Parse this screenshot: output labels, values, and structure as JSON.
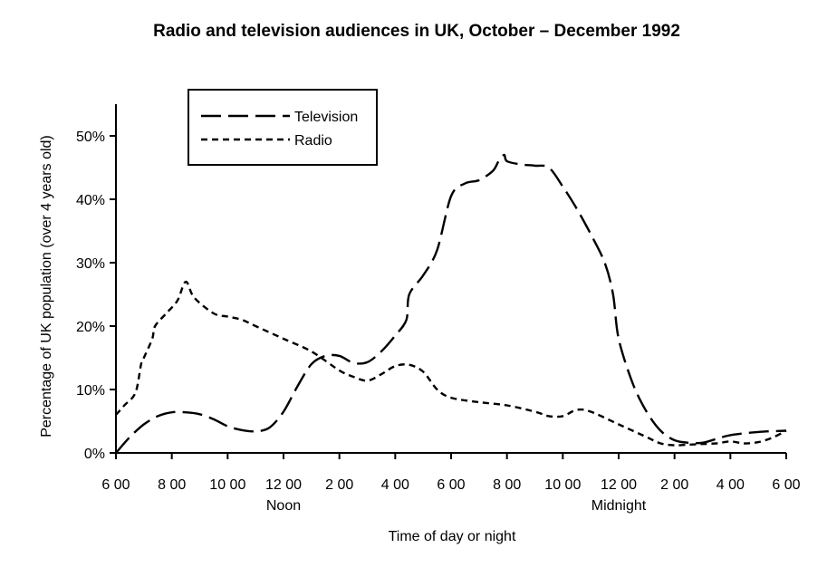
{
  "chart_data": {
    "type": "line",
    "title": "Radio and television audiences in UK, October – December 1992",
    "xlabel": "Time of day or night",
    "ylabel": "Percentage of UK population (over 4 years old)",
    "x_ticks": [
      {
        "hour": 6,
        "label": "6 00"
      },
      {
        "hour": 8,
        "label": "8 00"
      },
      {
        "hour": 10,
        "label": "10 00"
      },
      {
        "hour": 12,
        "label": "12 00",
        "sublabel": "Noon"
      },
      {
        "hour": 14,
        "label": "2 00"
      },
      {
        "hour": 16,
        "label": "4 00"
      },
      {
        "hour": 18,
        "label": "6 00"
      },
      {
        "hour": 20,
        "label": "8 00"
      },
      {
        "hour": 22,
        "label": "10 00"
      },
      {
        "hour": 24,
        "label": "12 00",
        "sublabel": "Midnight"
      },
      {
        "hour": 26,
        "label": "2 00"
      },
      {
        "hour": 28,
        "label": "4 00"
      },
      {
        "hour": 30,
        "label": "6 00"
      }
    ],
    "y_ticks": [
      {
        "value": 0,
        "label": "0%"
      },
      {
        "value": 10,
        "label": "10%"
      },
      {
        "value": 20,
        "label": "20%"
      },
      {
        "value": 30,
        "label": "30%"
      },
      {
        "value": 40,
        "label": "40%"
      },
      {
        "value": 50,
        "label": "50%"
      }
    ],
    "xlim": [
      6,
      30
    ],
    "ylim": [
      0,
      55
    ],
    "grid": false,
    "legend_position": "top-left",
    "series": [
      {
        "name": "Television",
        "style": "long-dash",
        "color": "#000000",
        "points": [
          [
            6.0,
            0
          ],
          [
            6.5,
            2.5
          ],
          [
            7.0,
            4.5
          ],
          [
            7.5,
            5.8
          ],
          [
            8.0,
            6.4
          ],
          [
            8.5,
            6.4
          ],
          [
            9.0,
            6.1
          ],
          [
            9.5,
            5.3
          ],
          [
            10.0,
            4.2
          ],
          [
            10.5,
            3.6
          ],
          [
            11.0,
            3.4
          ],
          [
            11.5,
            4.0
          ],
          [
            12.0,
            6.5
          ],
          [
            12.5,
            10.5
          ],
          [
            13.0,
            14.0
          ],
          [
            13.5,
            15.3
          ],
          [
            14.0,
            15.3
          ],
          [
            14.5,
            14.2
          ],
          [
            15.0,
            14.3
          ],
          [
            15.5,
            16.0
          ],
          [
            16.0,
            18.5
          ],
          [
            16.4,
            21.0
          ],
          [
            16.5,
            25.0
          ],
          [
            17.0,
            28.0
          ],
          [
            17.5,
            32.0
          ],
          [
            18.0,
            40.5
          ],
          [
            18.5,
            42.5
          ],
          [
            19.0,
            43.0
          ],
          [
            19.5,
            44.5
          ],
          [
            19.7,
            46.0
          ],
          [
            19.9,
            47.0
          ],
          [
            20.0,
            46.0
          ],
          [
            20.5,
            45.5
          ],
          [
            21.0,
            45.3
          ],
          [
            21.5,
            45.0
          ],
          [
            22.0,
            42.0
          ],
          [
            22.5,
            38.5
          ],
          [
            23.0,
            34.5
          ],
          [
            23.5,
            30.0
          ],
          [
            23.8,
            25.0
          ],
          [
            24.0,
            18.0
          ],
          [
            24.5,
            11.0
          ],
          [
            25.0,
            6.5
          ],
          [
            25.5,
            3.5
          ],
          [
            26.0,
            2.0
          ],
          [
            26.5,
            1.6
          ],
          [
            27.0,
            1.6
          ],
          [
            27.5,
            2.2
          ],
          [
            28.0,
            2.8
          ],
          [
            29.0,
            3.3
          ],
          [
            30.0,
            3.5
          ]
        ]
      },
      {
        "name": "Radio",
        "style": "short-dash",
        "color": "#000000",
        "points": [
          [
            6.0,
            6.0
          ],
          [
            6.3,
            7.5
          ],
          [
            6.7,
            9.5
          ],
          [
            6.9,
            14.0
          ],
          [
            7.0,
            15.0
          ],
          [
            7.3,
            18.0
          ],
          [
            7.4,
            20.0
          ],
          [
            7.8,
            22.0
          ],
          [
            8.2,
            24.0
          ],
          [
            8.5,
            27.0
          ],
          [
            8.8,
            24.5
          ],
          [
            9.5,
            22.0
          ],
          [
            10.0,
            21.5
          ],
          [
            10.5,
            21.0
          ],
          [
            11.0,
            20.0
          ],
          [
            12.0,
            18.0
          ],
          [
            13.0,
            16.0
          ],
          [
            14.0,
            13.0
          ],
          [
            14.5,
            12.0
          ],
          [
            15.0,
            11.4
          ],
          [
            15.5,
            12.4
          ],
          [
            16.0,
            13.7
          ],
          [
            16.5,
            13.9
          ],
          [
            17.0,
            12.8
          ],
          [
            17.5,
            10.0
          ],
          [
            18.0,
            8.7
          ],
          [
            19.0,
            8.0
          ],
          [
            20.0,
            7.5
          ],
          [
            21.0,
            6.5
          ],
          [
            21.5,
            5.8
          ],
          [
            22.0,
            5.8
          ],
          [
            22.5,
            6.8
          ],
          [
            23.0,
            6.5
          ],
          [
            24.0,
            4.5
          ],
          [
            25.0,
            2.5
          ],
          [
            25.5,
            1.5
          ],
          [
            26.0,
            1.2
          ],
          [
            26.5,
            1.3
          ],
          [
            27.0,
            1.4
          ],
          [
            27.5,
            1.5
          ],
          [
            28.0,
            1.8
          ],
          [
            28.5,
            1.5
          ],
          [
            29.0,
            1.7
          ],
          [
            29.5,
            2.4
          ],
          [
            30.0,
            3.5
          ]
        ]
      }
    ]
  }
}
